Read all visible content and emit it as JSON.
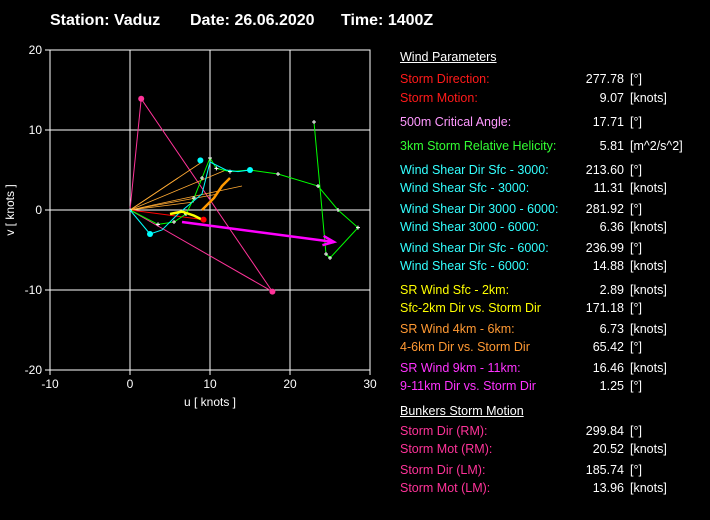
{
  "header": {
    "station": "Station: Vaduz",
    "date": "Date: 26.06.2020",
    "time": "Time: 1400Z"
  },
  "chart_data": {
    "type": "line",
    "title": "",
    "xlabel": "u  [ knots ]",
    "ylabel": "v  [ knots ]",
    "xlim": [
      -10,
      30
    ],
    "ylim": [
      -20,
      20
    ],
    "x_ticks": [
      -10,
      0,
      10,
      20,
      30
    ],
    "y_ticks": [
      -20,
      -10,
      0,
      10,
      20
    ],
    "grid": true,
    "series": [
      {
        "color": "#00ff00",
        "x": [
          0.0,
          3.5,
          5.5,
          7.0,
          8.0,
          9.0,
          10.0,
          10.8,
          12.5,
          15.0,
          18.5,
          23.5,
          26.0,
          28.5,
          25.0,
          24.5,
          23.0
        ],
        "y": [
          0.0,
          -1.8,
          -1.5,
          -0.5,
          1.5,
          4.0,
          6.5,
          5.2,
          4.8,
          5.0,
          4.5,
          3.0,
          0.0,
          -2.2,
          -6.0,
          -5.5,
          11.0
        ]
      },
      {
        "color": "#00ffff",
        "x": [
          0.0,
          2.5,
          4.0,
          6.0,
          9.0,
          10.0,
          12.0,
          13.5,
          15.0
        ],
        "y": [
          0.0,
          -3.0,
          -2.5,
          -0.5,
          2.0,
          6.0,
          5.0,
          4.8,
          5.0
        ]
      },
      {
        "color": "#ffff00",
        "x": [
          5.0,
          6.5,
          8.0,
          9.0
        ],
        "y": [
          -0.5,
          -0.2,
          -0.7,
          -1.2
        ]
      },
      {
        "color": "#ff9900",
        "x": [
          9.0,
          10.5,
          11.5,
          12.5
        ],
        "y": [
          0.0,
          1.5,
          3.0,
          4.0
        ]
      },
      {
        "color": "#ff00ff",
        "x": [
          6.5,
          25.5
        ],
        "y": [
          -1.5,
          -4.0
        ]
      }
    ],
    "hodograph_markers": [
      {
        "color": "#00ffff",
        "x": [
          2.5,
          8.8,
          15.0
        ],
        "y": [
          -3.0,
          6.2,
          5.0
        ]
      },
      {
        "color": "#ff0000",
        "x": [
          9.2
        ],
        "y": [
          -1.2
        ]
      },
      {
        "color": "#ff3399",
        "x": [
          1.4,
          17.8
        ],
        "y": [
          13.9,
          -10.2
        ]
      }
    ],
    "storm_motion_lines": [
      {
        "color": "#ff3399",
        "x": [
          0.0,
          1.4,
          17.8,
          0.0
        ],
        "y": [
          0.0,
          13.9,
          -10.2,
          0.0
        ]
      },
      {
        "color": "#ff0000",
        "x": [
          0.0,
          9.2
        ],
        "y": [
          0.0,
          -1.2
        ]
      }
    ]
  },
  "wind_parameters": {
    "title": "Wind Parameters",
    "rows": [
      {
        "label": "Storm Direction:",
        "value": "277.78",
        "unit": "[°]",
        "color": "#ff1a1a"
      },
      {
        "label": "Storm Motion:",
        "value": "9.07",
        "unit": "[knots]",
        "color": "#ff1a1a"
      },
      {
        "label": "500m Critical Angle:",
        "value": "17.71",
        "unit": "[°]",
        "color": "#ff99ff"
      },
      {
        "label": "3km Storm Relative Helicity:",
        "value": "5.81",
        "unit": "[m^2/s^2]",
        "color": "#33ff33"
      },
      {
        "label": "Wind Shear Dir Sfc - 3000:",
        "value": "213.60",
        "unit": "[°]",
        "color": "#33ffff"
      },
      {
        "label": "Wind Shear Sfc - 3000:",
        "value": "11.31",
        "unit": "[knots]",
        "color": "#33ffff"
      },
      {
        "label": "Wind Shear Dir 3000 - 6000:",
        "value": "281.92",
        "unit": "[°]",
        "color": "#33ffff"
      },
      {
        "label": "Wind Shear 3000 - 6000:",
        "value": "6.36",
        "unit": "[knots]",
        "color": "#33ffff"
      },
      {
        "label": "Wind Shear Dir Sfc - 6000:",
        "value": "236.99",
        "unit": "[°]",
        "color": "#33ffff"
      },
      {
        "label": "Wind Shear Sfc - 6000:",
        "value": "14.88",
        "unit": "[knots]",
        "color": "#33ffff"
      },
      {
        "label": "SR Wind Sfc - 2km:",
        "value": "2.89",
        "unit": "[knots]",
        "color": "#ffff00"
      },
      {
        "label": "Sfc-2km Dir vs. Storm Dir",
        "value": "171.18",
        "unit": "[°]",
        "color": "#ffff00"
      },
      {
        "label": "SR Wind 4km - 6km:",
        "value": "6.73",
        "unit": "[knots]",
        "color": "#ff9933"
      },
      {
        "label": "4-6km Dir vs. Storm Dir",
        "value": "65.42",
        "unit": "[°]",
        "color": "#ff9933"
      },
      {
        "label": "SR Wind 9km - 11km:",
        "value": "16.46",
        "unit": "[knots]",
        "color": "#ff33ff"
      },
      {
        "label": "9-11km Dir vs. Storm Dir",
        "value": "1.25",
        "unit": "[°]",
        "color": "#ff33ff"
      }
    ]
  },
  "bunkers": {
    "title": "Bunkers Storm Motion",
    "rows": [
      {
        "label": "Storm Dir (RM):",
        "value": "299.84",
        "unit": "[°]",
        "color": "#ff3399"
      },
      {
        "label": "Storm Mot (RM):",
        "value": "20.52",
        "unit": "[knots]",
        "color": "#ff3399"
      },
      {
        "label": "Storm Dir (LM):",
        "value": "185.74",
        "unit": "[°]",
        "color": "#ff3399"
      },
      {
        "label": "Storm Mot (LM):",
        "value": "13.96",
        "unit": "[knots]",
        "color": "#ff3399"
      }
    ]
  }
}
